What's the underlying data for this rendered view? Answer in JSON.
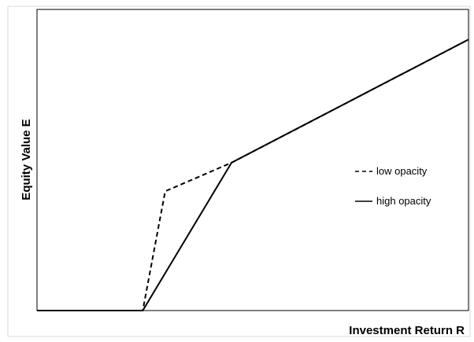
{
  "chart_data": {
    "type": "line",
    "title": "",
    "xlabel": "Investment Return R",
    "ylabel": "Equity Value E",
    "xlim": [
      0,
      100
    ],
    "ylim": [
      0,
      100
    ],
    "grid": false,
    "ticks": false,
    "legend_position": "right",
    "series": [
      {
        "name": "low opacity",
        "style": "dashed",
        "color": "#000000",
        "x": [
          0,
          24.5,
          29.7,
          45.1,
          100
        ],
        "y": [
          0,
          0,
          39.6,
          49.1,
          90
        ]
      },
      {
        "name": "high opacity",
        "style": "solid",
        "color": "#000000",
        "x": [
          0,
          24.5,
          45.1,
          100
        ],
        "y": [
          0,
          0,
          49.1,
          90
        ]
      }
    ]
  }
}
